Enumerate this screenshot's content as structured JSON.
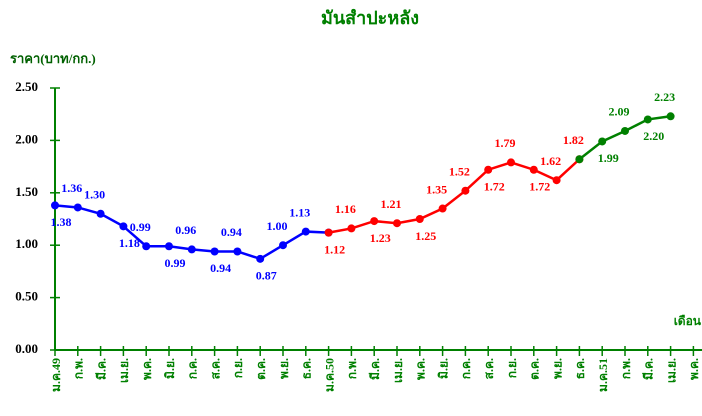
{
  "chart_data": {
    "type": "line",
    "title": "มันสำปะหลัง",
    "y_label": "ราคา(บาท/กก.)",
    "x_label": "เดือน",
    "categories": [
      "ม.ค.49",
      "ก.พ.",
      "มี.ค.",
      "เม.ย.",
      "พ.ค.",
      "มิ.ย.",
      "ก.ค.",
      "ส.ค.",
      "ก.ย.",
      "ต.ค.",
      "พ.ย.",
      "ธ.ค.",
      "ม.ค.50",
      "ก.พ.",
      "มี.ค.",
      "เม.ย.",
      "พ.ค.",
      "มิ.ย.",
      "ก.ค.",
      "ส.ค.",
      "ก.ย.",
      "ต.ค.",
      "พ.ย.",
      "ธ.ค.",
      "ม.ค.51",
      "ก.พ.",
      "มี.ค.",
      "เม.ย.",
      "พ.ค."
    ],
    "series": [
      {
        "color": "#0000ff",
        "values": [
          1.38,
          1.36,
          1.3,
          1.18,
          0.99,
          0.99,
          0.96,
          0.94,
          0.94,
          0.87,
          1.0,
          1.13,
          1.12,
          null,
          null,
          null,
          null,
          null,
          null,
          null,
          null,
          null,
          null,
          null,
          null,
          null,
          null,
          null,
          null
        ],
        "value_labels": [
          "1.38",
          "1.36",
          "1.30",
          "1.18",
          "0.99",
          "0.99",
          "0.96",
          "0.94",
          "0.94",
          "0.87",
          "1.00",
          "1.13",
          null,
          null,
          null,
          null,
          null,
          null,
          null,
          null,
          null,
          null,
          null,
          null,
          null,
          null,
          null,
          null,
          null
        ]
      },
      {
        "color": "#ff0000",
        "values": [
          null,
          null,
          null,
          null,
          null,
          null,
          null,
          null,
          null,
          null,
          null,
          null,
          1.12,
          1.16,
          1.23,
          1.21,
          1.25,
          1.35,
          1.52,
          1.72,
          1.79,
          1.72,
          1.62,
          1.82,
          null,
          null,
          null,
          null,
          null
        ],
        "value_labels": [
          null,
          null,
          null,
          null,
          null,
          null,
          null,
          null,
          null,
          null,
          null,
          null,
          "1.12",
          "1.16",
          "1.23",
          "1.21",
          "1.25",
          "1.35",
          "1.52",
          "1.72",
          "1.79",
          "1.72",
          "1.62",
          "1.82",
          null,
          null,
          null,
          null,
          null
        ]
      },
      {
        "color": "#008000",
        "values": [
          null,
          null,
          null,
          null,
          null,
          null,
          null,
          null,
          null,
          null,
          null,
          null,
          null,
          null,
          null,
          null,
          null,
          null,
          null,
          null,
          null,
          null,
          null,
          1.82,
          1.99,
          2.09,
          2.2,
          2.23,
          null
        ],
        "value_labels": [
          null,
          null,
          null,
          null,
          null,
          null,
          null,
          null,
          null,
          null,
          null,
          null,
          null,
          null,
          null,
          null,
          null,
          null,
          null,
          null,
          null,
          null,
          null,
          null,
          "1.99",
          "2.09",
          "2.20",
          "2.23",
          null
        ]
      }
    ],
    "ylim": [
      0,
      2.5
    ],
    "yticks": [
      {
        "value": 0,
        "label": "0.00"
      },
      {
        "value": 0.5,
        "label": "0.50"
      },
      {
        "value": 1,
        "label": "1.00"
      },
      {
        "value": 1.5,
        "label": "1.50"
      },
      {
        "value": 2,
        "label": "2.00"
      },
      {
        "value": 2.5,
        "label": "2.50"
      }
    ]
  }
}
